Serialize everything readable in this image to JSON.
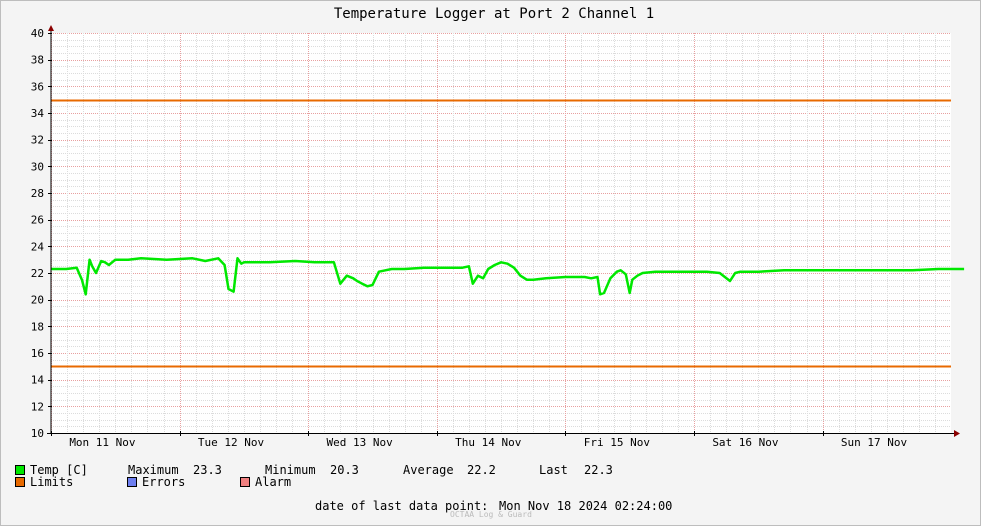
{
  "chart_data": {
    "type": "line",
    "title": "Temperature Logger at Port 2 Channel 1",
    "ylim": [
      10,
      40
    ],
    "y_ticks": [
      10,
      12,
      14,
      16,
      18,
      20,
      22,
      24,
      26,
      28,
      30,
      32,
      34,
      36,
      38,
      40
    ],
    "x_range_days": [
      0,
      7.1
    ],
    "x_tick_labels": [
      "Mon 11 Nov",
      "Tue 12 Nov",
      "Wed 13 Nov",
      "Thu 14 Nov",
      "Fri 15 Nov",
      "Sat 16 Nov",
      "Sun 17 Nov"
    ],
    "grid": true,
    "series": [
      {
        "name": "Temp [C]",
        "color": "#00e800",
        "x": [
          0.0,
          0.12,
          0.2,
          0.24,
          0.27,
          0.3,
          0.32,
          0.35,
          0.39,
          0.42,
          0.45,
          0.5,
          0.55,
          0.6,
          0.7,
          0.9,
          1.1,
          1.2,
          1.3,
          1.35,
          1.38,
          1.42,
          1.45,
          1.48,
          1.5,
          1.55,
          1.7,
          1.9,
          2.05,
          2.2,
          2.25,
          2.3,
          2.35,
          2.38,
          2.42,
          2.46,
          2.5,
          2.55,
          2.6,
          2.65,
          2.75,
          2.9,
          3.05,
          3.2,
          3.25,
          3.28,
          3.32,
          3.36,
          3.4,
          3.45,
          3.5,
          3.55,
          3.6,
          3.65,
          3.7,
          3.75,
          3.85,
          4.0,
          4.15,
          4.2,
          4.25,
          4.27,
          4.3,
          4.35,
          4.4,
          4.43,
          4.47,
          4.5,
          4.52,
          4.56,
          4.6,
          4.7,
          4.9,
          5.1,
          5.2,
          5.28,
          5.32,
          5.36,
          5.4,
          5.5,
          5.7,
          5.9,
          6.1,
          6.3,
          6.5,
          6.7,
          6.9,
          7.1
        ],
        "values": [
          22.3,
          22.3,
          22.4,
          21.5,
          20.4,
          23.0,
          22.5,
          22.0,
          22.9,
          22.8,
          22.6,
          23.0,
          23.0,
          23.0,
          23.1,
          23.0,
          23.1,
          22.9,
          23.1,
          22.6,
          20.8,
          20.6,
          23.1,
          22.7,
          22.8,
          22.8,
          22.8,
          22.9,
          22.8,
          22.8,
          21.2,
          21.8,
          21.6,
          21.4,
          21.2,
          21.0,
          21.1,
          22.1,
          22.2,
          22.3,
          22.3,
          22.4,
          22.4,
          22.4,
          22.5,
          21.2,
          21.8,
          21.6,
          22.3,
          22.6,
          22.8,
          22.7,
          22.4,
          21.8,
          21.5,
          21.5,
          21.6,
          21.7,
          21.7,
          21.6,
          21.7,
          20.4,
          20.5,
          21.6,
          22.1,
          22.2,
          21.9,
          20.5,
          21.5,
          21.8,
          22.0,
          22.1,
          22.1,
          22.1,
          22.0,
          21.4,
          22.0,
          22.1,
          22.1,
          22.1,
          22.2,
          22.2,
          22.2,
          22.2,
          22.2,
          22.2,
          22.3,
          22.3
        ]
      },
      {
        "name": "Limits",
        "color": "#e86a00",
        "values": [
          35,
          15
        ]
      },
      {
        "name": "Errors",
        "color": "#6e7ff0"
      },
      {
        "name": "Alarm",
        "color": "#f08080"
      }
    ],
    "stats": {
      "maximum_label": "Maximum",
      "maximum": "23.3",
      "minimum_label": "Minimum",
      "minimum": "20.3",
      "average_label": "Average",
      "average": "22.2",
      "last_label": "Last",
      "last": "22.3"
    },
    "footer_label": "date of last data point:",
    "footer_value": "Mon Nov 18 2024 02:24:00",
    "watermark": "OCTAA Log & Guard"
  }
}
